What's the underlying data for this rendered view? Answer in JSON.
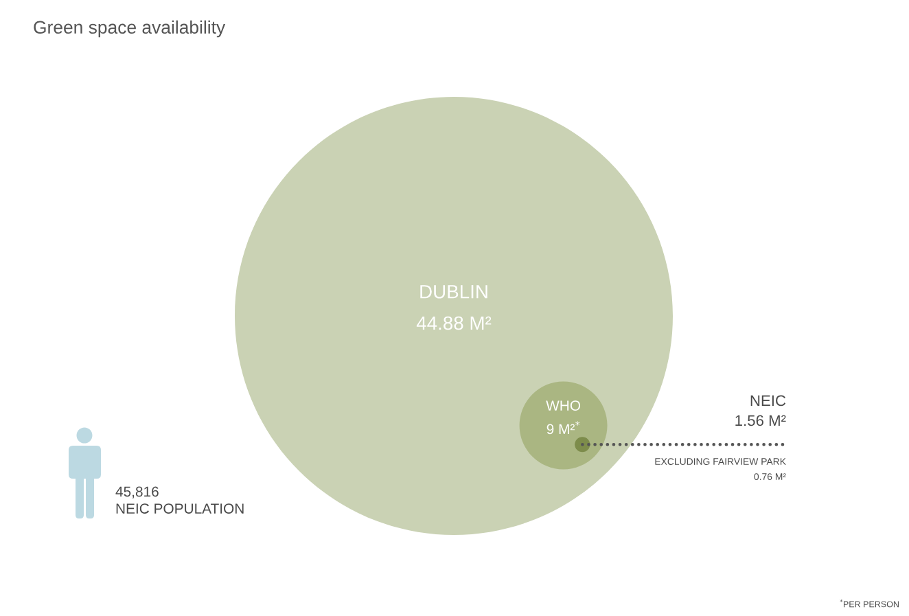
{
  "chart_data": {
    "type": "other",
    "title": "Green space availability",
    "categories": [
      "DUBLIN",
      "WHO",
      "NEIC"
    ],
    "values": [
      44.88,
      9,
      1.56
    ],
    "value_labels": [
      "44.88 M²",
      "9 M²$^{*}$",
      "1.56 M²"
    ],
    "colors": [
      "#cad2b4",
      "#aab682",
      "#7d8c4b"
    ],
    "annotations": [
      "45,816\nNEIC POPULATION",
      "EXCLUDING FAIRVIEW PARK\n0.76 M²",
      "$^{*}$PER PERSON"
    ]
  }
}
